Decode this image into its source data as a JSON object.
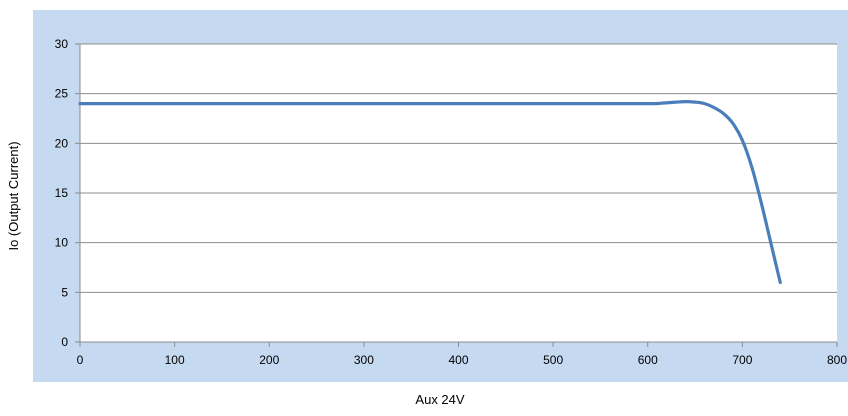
{
  "chart_data": {
    "type": "line",
    "title": "",
    "xlabel": "Aux 24V",
    "ylabel": "Io (Output Current)",
    "xlim": [
      0,
      800
    ],
    "ylim": [
      0,
      30
    ],
    "x_ticks": [
      "0",
      "100",
      "200",
      "300",
      "400",
      "500",
      "600",
      "700",
      "800"
    ],
    "y_ticks": [
      "0",
      "5",
      "10",
      "15",
      "20",
      "25",
      "30"
    ],
    "grid": "horizontal",
    "legend": "none",
    "series": [
      {
        "color": "#4a7ebb",
        "points": [
          [
            0,
            24
          ],
          [
            100,
            24
          ],
          [
            200,
            24
          ],
          [
            300,
            24
          ],
          [
            400,
            24
          ],
          [
            500,
            24
          ],
          [
            600,
            24
          ],
          [
            615,
            24.05
          ],
          [
            630,
            24.15
          ],
          [
            640,
            24.2
          ],
          [
            650,
            24.15
          ],
          [
            660,
            24.0
          ],
          [
            670,
            23.6
          ],
          [
            680,
            23.0
          ],
          [
            690,
            22.0
          ],
          [
            700,
            20.3
          ],
          [
            710,
            17.6
          ],
          [
            720,
            14.0
          ],
          [
            730,
            10.0
          ],
          [
            740,
            6.0
          ]
        ]
      }
    ]
  },
  "colors": {
    "outer_background": "#c5d9f1",
    "plot_background": "#ffffff",
    "gridline": "#8c8c8c",
    "line": "#4a7ebb"
  }
}
